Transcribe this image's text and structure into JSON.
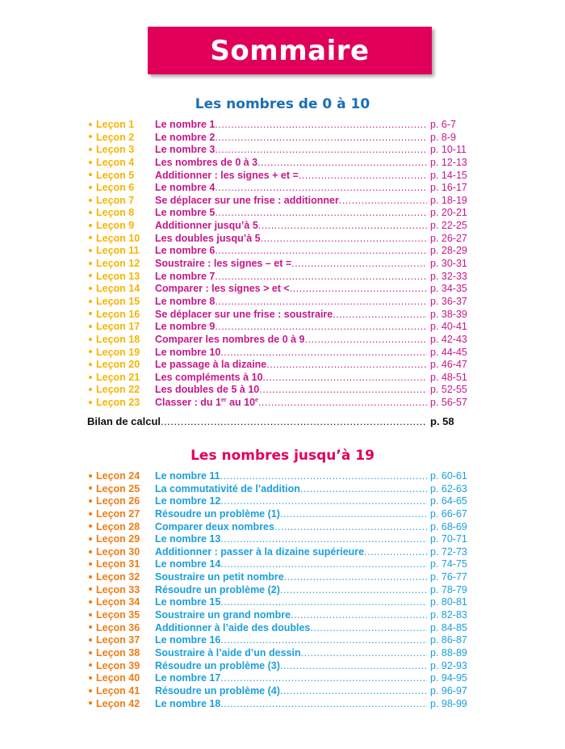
{
  "header": {
    "title": "Sommaire"
  },
  "colors": {
    "title_bg": "#e0005a",
    "section1_heading": "#1a6fb5",
    "section2_heading": "#e2005a",
    "section1_lesson": "#f7b500",
    "section1_text": "#c8168a",
    "section2_lesson": "#f07d14",
    "section2_text": "#1ba0dc"
  },
  "sections": [
    {
      "heading": "Les nombres de 0 à 10",
      "lessons": [
        {
          "label": "Leçon 1",
          "title": "Le nombre 1",
          "page": "p. 6-7"
        },
        {
          "label": "Leçon 2",
          "title": "Le nombre 2",
          "page": "p. 8-9"
        },
        {
          "label": "Leçon 3",
          "title": "Le nombre 3",
          "page": "p. 10-11"
        },
        {
          "label": "Leçon 4",
          "title": "Les nombres de 0 à 3",
          "page": "p. 12-13"
        },
        {
          "label": "Leçon 5",
          "title": "Additionner : les signes + et =",
          "page": "p. 14-15"
        },
        {
          "label": "Leçon 6",
          "title": "Le nombre 4",
          "page": "p. 16-17"
        },
        {
          "label": "Leçon 7",
          "title": "Se déplacer sur une frise : additionner",
          "page": "p. 18-19"
        },
        {
          "label": "Leçon 8",
          "title": "Le nombre 5",
          "page": "p. 20-21"
        },
        {
          "label": "Leçon 9",
          "title": "Additionner jusqu’à 5",
          "page": "p. 22-25"
        },
        {
          "label": "Leçon 10",
          "title": "Les doubles jusqu’à 5",
          "page": "p. 26-27"
        },
        {
          "label": "Leçon 11",
          "title": "Le nombre 6",
          "page": "p. 28-29"
        },
        {
          "label": "Leçon 12",
          "title": "Soustraire : les signes – et =",
          "page": "p. 30-31"
        },
        {
          "label": "Leçon 13",
          "title": "Le nombre 7",
          "page": "p. 32-33"
        },
        {
          "label": "Leçon 14",
          "title": "Comparer : les signes > et <",
          "page": "p. 34-35"
        },
        {
          "label": "Leçon 15",
          "title": "Le nombre 8",
          "page": "p. 36-37"
        },
        {
          "label": "Leçon 16",
          "title": "Se déplacer sur une frise : soustraire",
          "page": "p. 38-39"
        },
        {
          "label": "Leçon 17",
          "title": "Le nombre 9",
          "page": "p. 40-41"
        },
        {
          "label": "Leçon 18",
          "title": "Comparer les nombres de 0 à 9",
          "page": "p. 42-43"
        },
        {
          "label": "Leçon 19",
          "title": "Le nombre 10",
          "page": "p. 44-45"
        },
        {
          "label": "Leçon 20",
          "title": "Le passage à la dizaine",
          "page": "p. 46-47"
        },
        {
          "label": "Leçon 21",
          "title": "Les compléments à 10",
          "page": "p. 48-51"
        },
        {
          "label": "Leçon 22",
          "title": "Les doubles de 5 à 10",
          "page": "p. 52-55"
        },
        {
          "label": "Leçon 23",
          "title_parts": [
            {
              "t": "Classer : du 1"
            },
            {
              "t": "er",
              "sup": true
            },
            {
              "t": " au 10"
            },
            {
              "t": "e",
              "sup": true
            }
          ],
          "page": "p. 56-57"
        }
      ]
    },
    {
      "heading": "Les nombres jusqu’à 19",
      "lessons": [
        {
          "label": "Leçon 24",
          "title": "Le nombre 11",
          "page": "p. 60-61"
        },
        {
          "label": "Leçon 25",
          "title": "La commutativité de l’addition",
          "page": "p. 62-63"
        },
        {
          "label": "Leçon 26",
          "title": "Le nombre 12",
          "page": "p. 64-65"
        },
        {
          "label": "Leçon 27",
          "title": "Résoudre un problème (1)",
          "page": "p. 66-67"
        },
        {
          "label": "Leçon 28",
          "title": "Comparer deux nombres",
          "page": "p. 68-69"
        },
        {
          "label": "Leçon 29",
          "title": "Le nombre 13",
          "page": "p. 70-71"
        },
        {
          "label": "Leçon 30",
          "title": "Additionner : passer à la dizaine supérieure",
          "page": "p. 72-73"
        },
        {
          "label": "Leçon 31",
          "title": "Le nombre 14",
          "page": "p. 74-75"
        },
        {
          "label": "Leçon 32",
          "title": "Soustraire un petit nombre",
          "page": "p. 76-77"
        },
        {
          "label": "Leçon 33",
          "title": "Résoudre un problème (2)",
          "page": "p. 78-79"
        },
        {
          "label": "Leçon 34",
          "title": "Le nombre 15",
          "page": "p. 80-81"
        },
        {
          "label": "Leçon 35",
          "title": "Soustraire un grand nombre",
          "page": "p. 82-83"
        },
        {
          "label": "Leçon 36",
          "title": "Additionner à l’aide des doubles",
          "page": "p. 84-85"
        },
        {
          "label": "Leçon 37",
          "title": "Le nombre 16",
          "page": "p. 86-87"
        },
        {
          "label": "Leçon 38",
          "title": "Soustraire à l’aide d’un dessin",
          "page": "p. 88-89"
        },
        {
          "label": "Leçon 39",
          "title": "Résoudre un problème (3)",
          "page": "p. 92-93"
        },
        {
          "label": "Leçon 40",
          "title": "Le nombre 17",
          "page": "p. 94-95"
        },
        {
          "label": "Leçon 41",
          "title": "Résoudre un problème (4)",
          "page": "p. 96-97"
        },
        {
          "label": "Leçon 42",
          "title": "Le nombre 18",
          "page": "p. 98-99"
        }
      ]
    }
  ],
  "bilan": {
    "title": "Bilan de calcul",
    "page": "p. 58"
  }
}
